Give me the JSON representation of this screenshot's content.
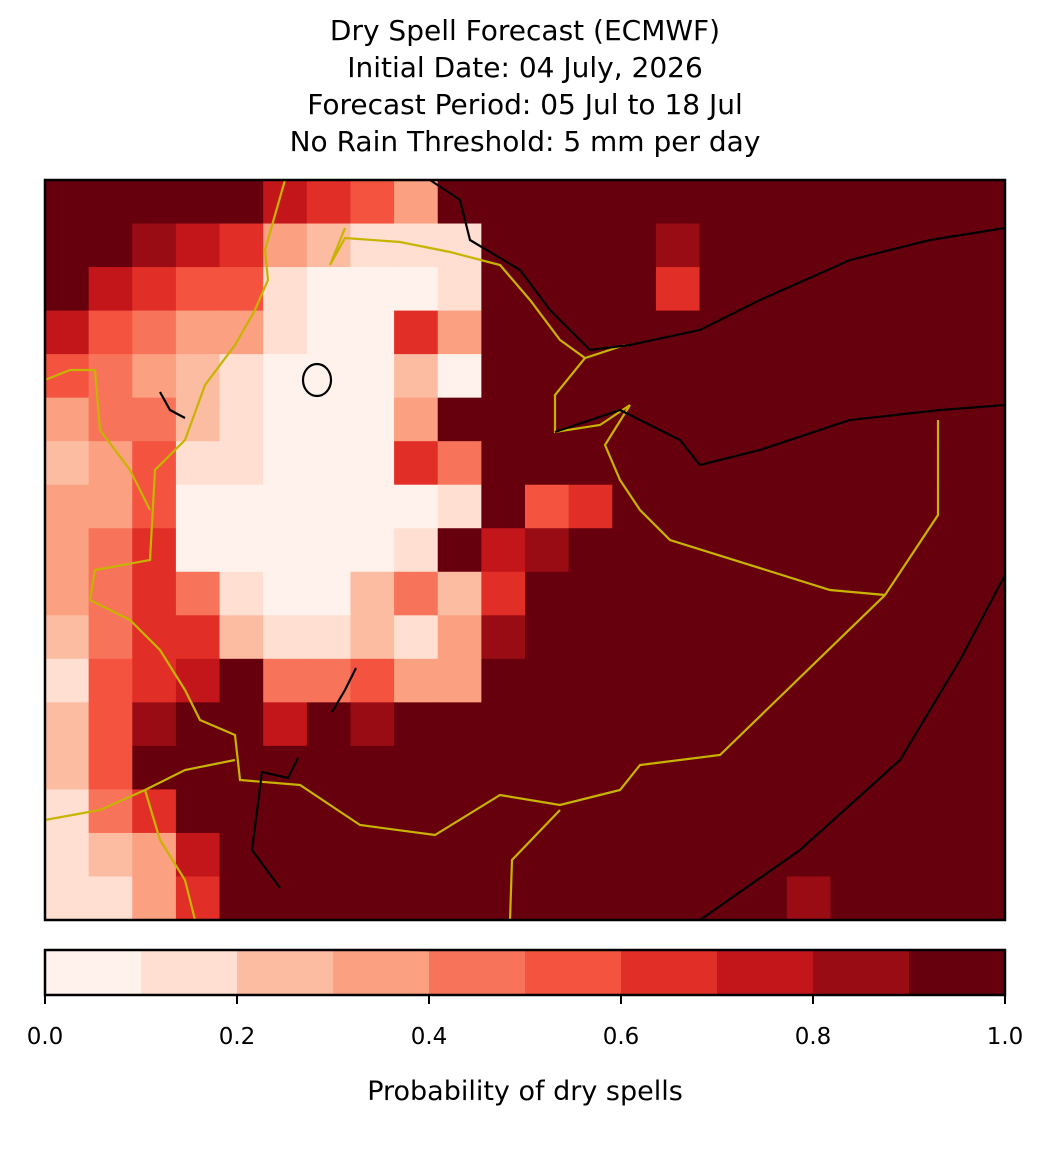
{
  "chart_data": {
    "type": "heatmap",
    "title": [
      "Dry Spell Forecast (ECMWF)",
      "Initial Date: 04 July, 2026",
      "Forecast Period: 05 Jul to 18 Jul",
      "No Rain Threshold: 5 mm per day"
    ],
    "colorbar_label": "Probability of dry spells",
    "levels": [
      0,
      0.1,
      0.2,
      0.3,
      0.4,
      0.5,
      0.6,
      0.7,
      0.8,
      0.9,
      1
    ],
    "colors": [
      "#fff2ec",
      "#fedfd1",
      "#fcbca2",
      "#fba080",
      "#f7735a",
      "#f4533f",
      "#e12f27",
      "#c3161b",
      "#9a0c14",
      "#67000d"
    ],
    "cticks": [
      {
        "value": 0,
        "label": "0.0"
      },
      0.2,
      0.4,
      0.6,
      0.8,
      {
        "value": 1,
        "label": "1.0"
      }
    ],
    "clim": [
      0,
      1
    ],
    "z": [
      [
        0.95,
        0.95,
        0.95,
        0.95,
        0.95,
        0.75,
        0.6,
        0.5,
        0.3,
        0.95,
        0.95,
        0.95,
        0.95,
        0.95,
        0.95,
        0.95,
        0.95,
        0.95,
        0.95,
        0.95,
        0.95,
        0.95
      ],
      [
        0.9,
        0.9,
        0.85,
        0.75,
        0.6,
        0.35,
        0.2,
        0.1,
        0.1,
        0.15,
        0.95,
        0.95,
        0.95,
        0.95,
        0.85,
        0.95,
        0.95,
        0.95,
        0.95,
        0.95,
        0.95,
        0.95
      ],
      [
        0.9,
        0.75,
        0.6,
        0.5,
        0.5,
        0.15,
        0.05,
        0.05,
        0.05,
        0.1,
        0.95,
        0.95,
        0.95,
        0.95,
        0.6,
        0.95,
        0.95,
        0.95,
        0.95,
        0.95,
        0.95,
        0.95
      ],
      [
        0.7,
        0.55,
        0.45,
        0.35,
        0.3,
        0.1,
        0.05,
        0.05,
        0.6,
        0.3,
        0.95,
        0.95,
        0.95,
        0.95,
        0.95,
        0.95,
        0.95,
        0.95,
        0.95,
        0.95,
        0.95,
        0.95
      ],
      [
        0.5,
        0.4,
        0.35,
        0.25,
        0.15,
        0.05,
        0.05,
        0.05,
        0.2,
        0.05,
        0.95,
        0.95,
        0.95,
        0.95,
        0.95,
        0.95,
        0.95,
        0.95,
        0.95,
        0.95,
        0.95,
        0.95
      ],
      [
        0.35,
        0.4,
        0.45,
        0.25,
        0.1,
        0.05,
        0.05,
        0.05,
        0.3,
        0.95,
        0.95,
        0.95,
        0.95,
        0.95,
        0.95,
        0.95,
        0.95,
        0.95,
        0.95,
        0.95,
        0.95,
        0.95
      ],
      [
        0.25,
        0.35,
        0.5,
        0.1,
        0.1,
        0.05,
        0.05,
        0.05,
        0.6,
        0.4,
        0.95,
        0.95,
        0.95,
        0.95,
        0.95,
        0.95,
        0.95,
        0.95,
        0.95,
        0.95,
        0.95,
        0.95
      ],
      [
        0.3,
        0.35,
        0.55,
        0.05,
        0.05,
        0.05,
        0.05,
        0.05,
        0.05,
        0.15,
        0.95,
        0.5,
        0.6,
        0.95,
        0.95,
        0.95,
        0.95,
        0.95,
        0.95,
        0.95,
        0.95,
        0.95
      ],
      [
        0.35,
        0.45,
        0.6,
        0.05,
        0.05,
        0.05,
        0.05,
        0.05,
        0.1,
        0.9,
        0.75,
        0.8,
        0.95,
        0.95,
        0.95,
        0.95,
        0.95,
        0.95,
        0.95,
        0.95,
        0.95,
        0.95
      ],
      [
        0.3,
        0.45,
        0.65,
        0.4,
        0.1,
        0.05,
        0.05,
        0.2,
        0.45,
        0.2,
        0.6,
        0.95,
        0.95,
        0.95,
        0.95,
        0.95,
        0.95,
        0.95,
        0.95,
        0.95,
        0.95,
        0.95
      ],
      [
        0.2,
        0.45,
        0.6,
        0.65,
        0.2,
        0.15,
        0.15,
        0.25,
        0.15,
        0.3,
        0.85,
        0.95,
        0.95,
        0.95,
        0.95,
        0.95,
        0.95,
        0.95,
        0.95,
        0.95,
        0.95,
        0.95
      ],
      [
        0.15,
        0.5,
        0.65,
        0.75,
        0.9,
        0.4,
        0.45,
        0.55,
        0.3,
        0.3,
        0.95,
        0.95,
        0.95,
        0.95,
        0.95,
        0.95,
        0.95,
        0.95,
        0.95,
        0.95,
        0.95,
        0.95
      ],
      [
        0.2,
        0.5,
        0.8,
        0.9,
        0.95,
        0.75,
        0.95,
        0.8,
        0.95,
        0.95,
        0.95,
        0.95,
        0.95,
        0.95,
        0.95,
        0.95,
        0.95,
        0.95,
        0.95,
        0.95,
        0.95,
        0.95
      ],
      [
        0.25,
        0.5,
        0.9,
        0.95,
        0.95,
        0.95,
        0.95,
        0.95,
        0.95,
        0.95,
        0.95,
        0.95,
        0.95,
        0.95,
        0.95,
        0.95,
        0.95,
        0.95,
        0.95,
        0.95,
        0.95,
        0.95
      ],
      [
        0.15,
        0.4,
        0.6,
        0.95,
        0.95,
        0.95,
        0.95,
        0.95,
        0.95,
        0.95,
        0.95,
        0.95,
        0.95,
        0.95,
        0.95,
        0.95,
        0.95,
        0.95,
        0.95,
        0.95,
        0.95,
        0.95
      ],
      [
        0.15,
        0.2,
        0.3,
        0.7,
        0.95,
        0.95,
        0.95,
        0.95,
        0.95,
        0.95,
        0.95,
        0.95,
        0.95,
        0.95,
        0.95,
        0.95,
        0.95,
        0.95,
        0.95,
        0.95,
        0.95,
        0.95
      ],
      [
        0.1,
        0.15,
        0.3,
        0.6,
        0.95,
        0.95,
        0.95,
        0.95,
        0.95,
        0.95,
        0.95,
        0.95,
        0.95,
        0.95,
        0.95,
        0.95,
        0.95,
        0.85,
        0.95,
        0.95,
        0.95,
        0.95
      ]
    ]
  }
}
